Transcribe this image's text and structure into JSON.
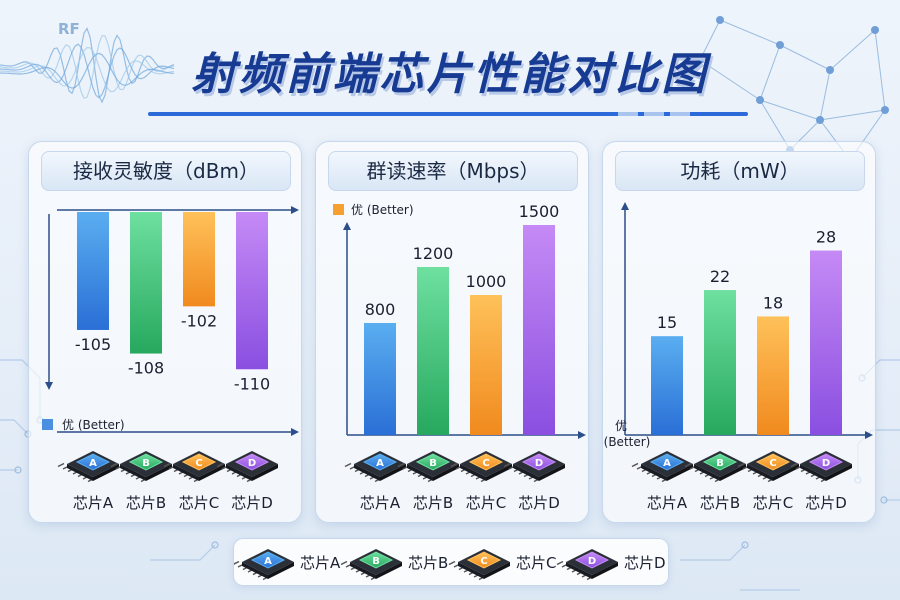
{
  "title": "射频前端芯片性能对比图",
  "rf_label": "RF",
  "colors": {
    "A": [
      "#5aaef0",
      "#2a6fd6"
    ],
    "B": [
      "#6ee0a0",
      "#27a85e"
    ],
    "C": [
      "#ffc15a",
      "#f08a1e"
    ],
    "D": [
      "#c58af5",
      "#8a4fe0"
    ]
  },
  "better_marker_color": "#4a8fe0",
  "better_marker_color_mid": "#f5a030",
  "chart_data": [
    {
      "type": "bar",
      "title": "接收灵敏度（dBm）",
      "categories": [
        "芯片A",
        "芯片B",
        "芯片C",
        "芯片D"
      ],
      "chips": [
        "A",
        "B",
        "C",
        "D"
      ],
      "values": [
        -105,
        -108,
        -102,
        -110
      ],
      "value_labels": [
        "-105",
        "-108",
        "-102",
        "-110"
      ],
      "better_label": "优 (Better)",
      "direction": "down",
      "ylim": [
        -90,
        -112
      ]
    },
    {
      "type": "bar",
      "title": "群读速率（Mbps）",
      "categories": [
        "芯片A",
        "芯片B",
        "芯片C",
        "芯片D"
      ],
      "chips": [
        "A",
        "B",
        "C",
        "D"
      ],
      "values": [
        800,
        1200,
        1000,
        1500
      ],
      "value_labels": [
        "800",
        "1200",
        "1000",
        "1500"
      ],
      "better_label": "优 (Better)",
      "direction": "up",
      "ylim": [
        0,
        1700
      ]
    },
    {
      "type": "bar",
      "title": "功耗（mW）",
      "categories": [
        "芯片A",
        "芯片B",
        "芯片C",
        "芯片D"
      ],
      "chips": [
        "A",
        "B",
        "C",
        "D"
      ],
      "values": [
        15,
        22,
        18,
        28
      ],
      "value_labels": [
        "15",
        "22",
        "18",
        "28"
      ],
      "better_label_line1": "优",
      "better_label_line2": "(Better)",
      "direction": "up",
      "ylim": [
        0,
        34
      ]
    }
  ],
  "legend": [
    {
      "chip": "A",
      "label": "芯片A"
    },
    {
      "chip": "B",
      "label": "芯片B"
    },
    {
      "chip": "C",
      "label": "芯片C"
    },
    {
      "chip": "D",
      "label": "芯片D"
    }
  ]
}
